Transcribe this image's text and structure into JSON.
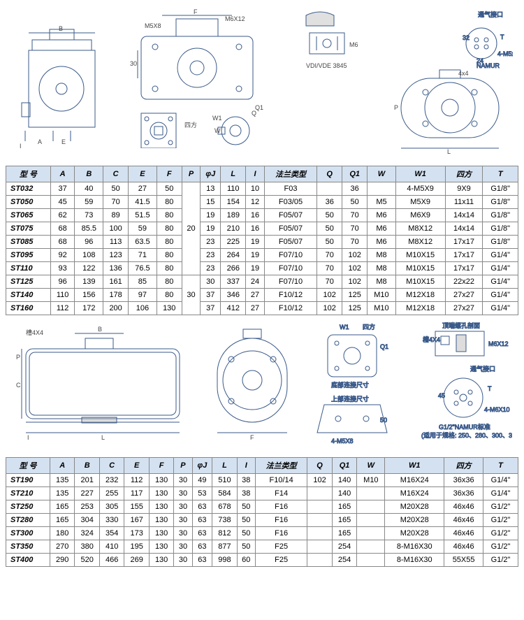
{
  "diagrams_top": {
    "labels": [
      "B",
      "A",
      "E",
      "I",
      "M5X8",
      "F",
      "M6X12",
      "30",
      "四方",
      "W",
      "W1",
      "Q",
      "Q1",
      "VDI/VDE 3845",
      "M6",
      "4x4",
      "通气接口",
      "NAMUR",
      "4-M5x8",
      "24",
      "L",
      "P",
      "T",
      "32"
    ]
  },
  "diagrams_mid": {
    "labels": [
      "槽4X4",
      "B",
      "I",
      "P",
      "C",
      "L",
      "W1",
      "四方",
      "Q1",
      "F",
      "底部连接尺寸",
      "上部连接尺寸",
      "4-M5X8",
      "50",
      "顶端螺孔剖面",
      "槽4X4",
      "M6X12",
      "通气接口",
      "T",
      "45",
      "4-M6X10",
      "G1/2\"NAMUR标准",
      "(适用于规格: 250、280、300、350、400)"
    ]
  },
  "table1": {
    "headers": [
      "型 号",
      "A",
      "B",
      "C",
      "E",
      "F",
      "P",
      "φJ",
      "L",
      "I",
      "法兰类型",
      "Q",
      "Q1",
      "W",
      "W1",
      "四方",
      "T"
    ],
    "rows": [
      [
        "ST032",
        "37",
        "40",
        "50",
        "27",
        "50",
        "",
        "13",
        "110",
        "10",
        "F03",
        "",
        "36",
        "",
        "4-M5X9",
        "9X9",
        "G1/8\""
      ],
      [
        "ST050",
        "45",
        "59",
        "70",
        "41.5",
        "80",
        "",
        "15",
        "154",
        "12",
        "F03/05",
        "36",
        "50",
        "M5",
        "M5X9",
        "11x11",
        "G1/8\""
      ],
      [
        "ST065",
        "62",
        "73",
        "89",
        "51.5",
        "80",
        "",
        "19",
        "189",
        "16",
        "F05/07",
        "50",
        "70",
        "M6",
        "M6X9",
        "14x14",
        "G1/8\""
      ],
      [
        "ST075",
        "68",
        "85.5",
        "100",
        "59",
        "80",
        "",
        "19",
        "210",
        "16",
        "F05/07",
        "50",
        "70",
        "M6",
        "M8X12",
        "14x14",
        "G1/8\""
      ],
      [
        "ST085",
        "68",
        "96",
        "113",
        "63.5",
        "80",
        "",
        "23",
        "225",
        "19",
        "F05/07",
        "50",
        "70",
        "M6",
        "M8X12",
        "17x17",
        "G1/8\""
      ],
      [
        "ST095",
        "92",
        "108",
        "123",
        "71",
        "80",
        "",
        "23",
        "264",
        "19",
        "F07/10",
        "70",
        "102",
        "M8",
        "M10X15",
        "17x17",
        "G1/4\""
      ],
      [
        "ST110",
        "93",
        "122",
        "136",
        "76.5",
        "80",
        "",
        "23",
        "266",
        "19",
        "F07/10",
        "70",
        "102",
        "M8",
        "M10X15",
        "17x17",
        "G1/4\""
      ],
      [
        "ST125",
        "96",
        "139",
        "161",
        "85",
        "80",
        "",
        "30",
        "337",
        "24",
        "F07/10",
        "70",
        "102",
        "M8",
        "M10X15",
        "22x22",
        "G1/4\""
      ],
      [
        "ST140",
        "110",
        "156",
        "178",
        "97",
        "80",
        "",
        "37",
        "346",
        "27",
        "F10/12",
        "102",
        "125",
        "M10",
        "M12X18",
        "27x27",
        "G1/4\""
      ],
      [
        "ST160",
        "112",
        "172",
        "200",
        "106",
        "130",
        "",
        "37",
        "412",
        "27",
        "F10/12",
        "102",
        "125",
        "M10",
        "M12X18",
        "27x27",
        "G1/4\""
      ]
    ],
    "p_merged": [
      {
        "text": "20",
        "span": 7
      },
      {
        "text": "30",
        "span": 3
      }
    ]
  },
  "table2": {
    "headers": [
      "型 号",
      "A",
      "B",
      "C",
      "E",
      "F",
      "P",
      "φJ",
      "L",
      "I",
      "法兰类型",
      "Q",
      "Q1",
      "W",
      "W1",
      "四方",
      "T"
    ],
    "rows": [
      [
        "ST190",
        "135",
        "201",
        "232",
        "112",
        "130",
        "30",
        "49",
        "510",
        "38",
        "F10/14",
        "102",
        "140",
        "M10",
        "M16X24",
        "36x36",
        "G1/4\""
      ],
      [
        "ST210",
        "135",
        "227",
        "255",
        "117",
        "130",
        "30",
        "53",
        "584",
        "38",
        "F14",
        "",
        "140",
        "",
        "M16X24",
        "36x36",
        "G1/4\""
      ],
      [
        "ST250",
        "165",
        "253",
        "305",
        "155",
        "130",
        "30",
        "63",
        "678",
        "50",
        "F16",
        "",
        "165",
        "",
        "M20X28",
        "46x46",
        "G1/2\""
      ],
      [
        "ST280",
        "165",
        "304",
        "330",
        "167",
        "130",
        "30",
        "63",
        "738",
        "50",
        "F16",
        "",
        "165",
        "",
        "M20X28",
        "46x46",
        "G1/2\""
      ],
      [
        "ST300",
        "180",
        "324",
        "354",
        "173",
        "130",
        "30",
        "63",
        "812",
        "50",
        "F16",
        "",
        "165",
        "",
        "M20X28",
        "46x46",
        "G1/2\""
      ],
      [
        "ST350",
        "270",
        "380",
        "410",
        "195",
        "130",
        "30",
        "63",
        "877",
        "50",
        "F25",
        "",
        "254",
        "",
        "8-M16X30",
        "46x46",
        "G1/2\""
      ],
      [
        "ST400",
        "290",
        "520",
        "466",
        "269",
        "130",
        "30",
        "63",
        "998",
        "60",
        "F25",
        "",
        "254",
        "",
        "8-M16X30",
        "55X55",
        "G1/2\""
      ]
    ]
  },
  "styling": {
    "header_bg": "#d4e1f0",
    "border_color": "#888888",
    "font_size_table": 11,
    "font_size_label": 9,
    "drawing_stroke": "#3a5a8a",
    "drawing_stroke_width": 1
  }
}
